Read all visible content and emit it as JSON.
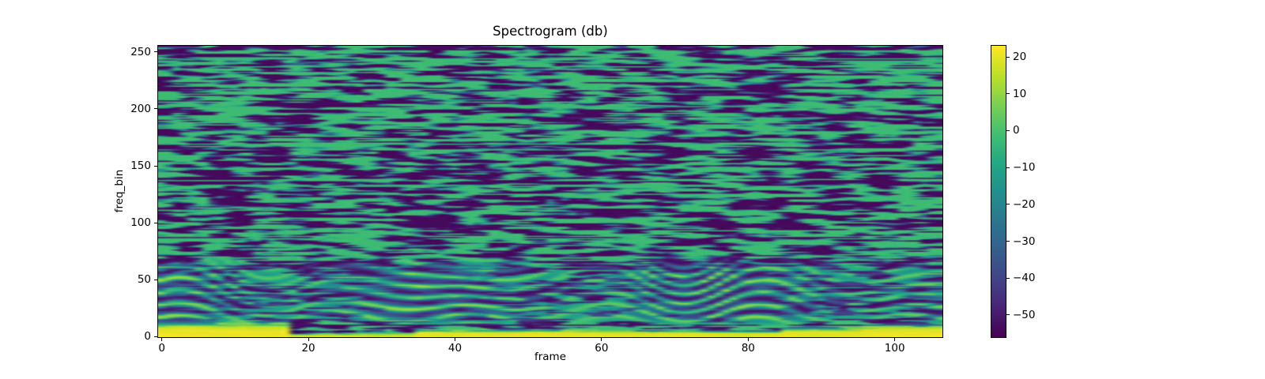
{
  "figure": {
    "background_color": "#ffffff",
    "text_color": "#000000",
    "spine_color": "#000000"
  },
  "chart_data": {
    "type": "heatmap",
    "title": "Spectrogram (db)",
    "xlabel": "frame",
    "ylabel": "freq_bin",
    "frames": 107,
    "bins": 256,
    "x_range": [
      -0.5,
      106.5
    ],
    "y_range": [
      -0.5,
      255.5
    ],
    "x_ticks": [
      0,
      20,
      40,
      60,
      80,
      100
    ],
    "y_ticks": [
      0,
      50,
      100,
      150,
      200,
      250
    ],
    "vmin": -56,
    "vmax": 23,
    "colorbar_ticks": [
      20,
      10,
      0,
      -10,
      -20,
      -30,
      -40,
      -50
    ],
    "colormap": "viridis",
    "colormap_stops": [
      "#440154",
      "#482475",
      "#414487",
      "#355f8d",
      "#2a788e",
      "#21918c",
      "#22a884",
      "#44bf70",
      "#7ad151",
      "#bddf26",
      "#fde725"
    ],
    "content_description": "Dense viridis speckle noise across all frequency bins; bright yellow low-frequency energy band (bins 0-14) strongest at frames 0-17, 35-60 and 85-107; wavy harmonic ridges between bins 10-74.",
    "texture": {
      "seed": 1337421,
      "speckle": {
        "blur_h": 1,
        "blur_v": 1,
        "threshold": [
          0.46,
          0.54
        ],
        "dark_value": -54,
        "bright_value": -2,
        "row_bias": 0.06
      },
      "streak_rows": {
        "count": 18,
        "min_bin": 68,
        "max_bin": 252,
        "strength": 0.95
      },
      "harmonics": {
        "band": [
          8,
          74
        ],
        "fade_in": [
          8,
          19
        ],
        "fade_out": [
          50,
          74
        ],
        "period": 9.5,
        "period_wobble": 1.6,
        "phase": {
          "amp1": 5.5,
          "w1": 0.32,
          "p1": 0.7,
          "amp2": 3.0,
          "w2": 0.085,
          "p2": 2.1
        },
        "strength": 0.82,
        "frame_mod": {
          "base": 0.62,
          "amp": 0.38,
          "w": 0.16,
          "p": 2.0
        },
        "peak_value": 16,
        "trough_value": -50,
        "sharpen": 1.5
      },
      "bottom_band": {
        "segments": [
          {
            "f0": 0,
            "f1": 18,
            "height": 13,
            "value": 21
          },
          {
            "f0": 18,
            "f1": 35,
            "height": 2.5,
            "value": 17
          },
          {
            "f0": 35,
            "f1": 60,
            "height": 6,
            "value": 20
          },
          {
            "f0": 60,
            "f1": 85,
            "height": 5,
            "value": 19
          },
          {
            "f0": 85,
            "f1": 96,
            "height": 8,
            "value": 20
          },
          {
            "f0": 96,
            "f1": 107,
            "height": 10,
            "value": 21
          }
        ],
        "edge_noise": 3,
        "base_row_value": 15
      }
    }
  }
}
